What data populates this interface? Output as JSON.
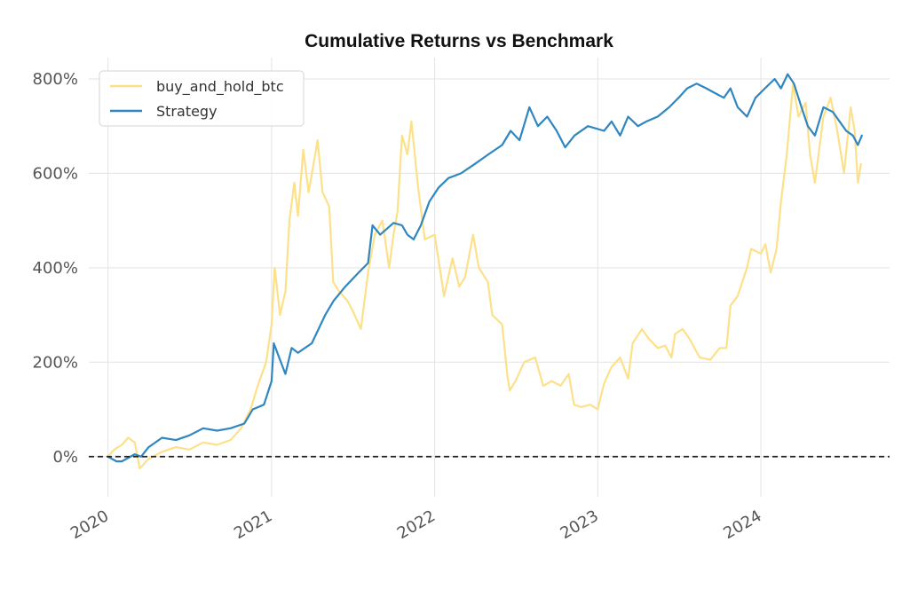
{
  "chart_data": {
    "type": "line",
    "title": "Cumulative Returns vs Benchmark",
    "xlabel": "",
    "ylabel": "",
    "x_tick_labels": [
      "2020",
      "2021",
      "2022",
      "2023",
      "2024"
    ],
    "y_tick_labels": [
      "0%",
      "200%",
      "400%",
      "600%",
      "800%"
    ],
    "y_ticks": [
      0,
      200,
      400,
      600,
      800
    ],
    "ylim": [
      -85,
      845
    ],
    "xlim": [
      "2019-11-19",
      "2024-10-15"
    ],
    "grid": true,
    "legend_position": "top-left",
    "baseline": {
      "y": 0,
      "style": "dashed",
      "color": "#222222"
    },
    "series": [
      {
        "name": "buy_and_hold_btc",
        "color": "#fde08a",
        "points": [
          [
            "2020-01-01",
            0
          ],
          [
            "2020-01-15",
            15
          ],
          [
            "2020-02-01",
            25
          ],
          [
            "2020-02-15",
            40
          ],
          [
            "2020-03-01",
            30
          ],
          [
            "2020-03-12",
            -25
          ],
          [
            "2020-04-01",
            -5
          ],
          [
            "2020-05-01",
            10
          ],
          [
            "2020-06-01",
            20
          ],
          [
            "2020-07-01",
            15
          ],
          [
            "2020-08-01",
            30
          ],
          [
            "2020-09-01",
            25
          ],
          [
            "2020-10-01",
            35
          ],
          [
            "2020-10-25",
            60
          ],
          [
            "2020-11-15",
            100
          ],
          [
            "2020-12-01",
            150
          ],
          [
            "2020-12-20",
            200
          ],
          [
            "2021-01-01",
            280
          ],
          [
            "2021-01-08",
            400
          ],
          [
            "2021-01-20",
            300
          ],
          [
            "2021-02-01",
            350
          ],
          [
            "2021-02-10",
            500
          ],
          [
            "2021-02-21",
            580
          ],
          [
            "2021-03-01",
            510
          ],
          [
            "2021-03-13",
            650
          ],
          [
            "2021-03-25",
            560
          ],
          [
            "2021-04-05",
            620
          ],
          [
            "2021-04-14",
            670
          ],
          [
            "2021-04-25",
            560
          ],
          [
            "2021-05-10",
            530
          ],
          [
            "2021-05-19",
            370
          ],
          [
            "2021-06-01",
            350
          ],
          [
            "2021-06-20",
            330
          ],
          [
            "2021-07-01",
            310
          ],
          [
            "2021-07-20",
            270
          ],
          [
            "2021-08-05",
            390
          ],
          [
            "2021-08-20",
            470
          ],
          [
            "2021-09-06",
            500
          ],
          [
            "2021-09-21",
            400
          ],
          [
            "2021-10-01",
            470
          ],
          [
            "2021-10-10",
            520
          ],
          [
            "2021-10-20",
            680
          ],
          [
            "2021-11-01",
            640
          ],
          [
            "2021-11-10",
            710
          ],
          [
            "2021-11-25",
            570
          ],
          [
            "2021-12-10",
            460
          ],
          [
            "2022-01-01",
            470
          ],
          [
            "2022-01-22",
            340
          ],
          [
            "2022-02-10",
            420
          ],
          [
            "2022-02-25",
            360
          ],
          [
            "2022-03-10",
            380
          ],
          [
            "2022-03-28",
            470
          ],
          [
            "2022-04-10",
            400
          ],
          [
            "2022-04-30",
            370
          ],
          [
            "2022-05-10",
            300
          ],
          [
            "2022-06-01",
            280
          ],
          [
            "2022-06-13",
            170
          ],
          [
            "2022-06-18",
            140
          ],
          [
            "2022-07-01",
            160
          ],
          [
            "2022-07-20",
            200
          ],
          [
            "2022-08-14",
            210
          ],
          [
            "2022-09-01",
            150
          ],
          [
            "2022-09-20",
            160
          ],
          [
            "2022-10-10",
            150
          ],
          [
            "2022-10-28",
            175
          ],
          [
            "2022-11-09",
            110
          ],
          [
            "2022-11-25",
            105
          ],
          [
            "2022-12-15",
            110
          ],
          [
            "2023-01-01",
            100
          ],
          [
            "2023-01-15",
            155
          ],
          [
            "2023-02-01",
            190
          ],
          [
            "2023-02-20",
            210
          ],
          [
            "2023-03-10",
            165
          ],
          [
            "2023-03-20",
            240
          ],
          [
            "2023-04-10",
            270
          ],
          [
            "2023-04-25",
            250
          ],
          [
            "2023-05-15",
            230
          ],
          [
            "2023-06-01",
            235
          ],
          [
            "2023-06-15",
            210
          ],
          [
            "2023-06-23",
            260
          ],
          [
            "2023-07-10",
            270
          ],
          [
            "2023-07-25",
            250
          ],
          [
            "2023-08-17",
            210
          ],
          [
            "2023-09-10",
            205
          ],
          [
            "2023-10-01",
            230
          ],
          [
            "2023-10-16",
            230
          ],
          [
            "2023-10-25",
            320
          ],
          [
            "2023-11-10",
            340
          ],
          [
            "2023-12-01",
            400
          ],
          [
            "2023-12-10",
            440
          ],
          [
            "2024-01-01",
            430
          ],
          [
            "2024-01-11",
            450
          ],
          [
            "2024-01-23",
            390
          ],
          [
            "2024-02-05",
            440
          ],
          [
            "2024-02-15",
            540
          ],
          [
            "2024-02-28",
            640
          ],
          [
            "2024-03-13",
            790
          ],
          [
            "2024-03-25",
            720
          ],
          [
            "2024-04-10",
            750
          ],
          [
            "2024-04-20",
            640
          ],
          [
            "2024-05-01",
            580
          ],
          [
            "2024-05-20",
            720
          ],
          [
            "2024-06-05",
            760
          ],
          [
            "2024-06-20",
            690
          ],
          [
            "2024-07-05",
            600
          ],
          [
            "2024-07-20",
            740
          ],
          [
            "2024-07-29",
            690
          ],
          [
            "2024-08-05",
            580
          ],
          [
            "2024-08-12",
            620
          ]
        ]
      },
      {
        "name": "Strategy",
        "color": "#2f86c0",
        "points": [
          [
            "2020-01-01",
            0
          ],
          [
            "2020-01-20",
            -10
          ],
          [
            "2020-02-01",
            -10
          ],
          [
            "2020-03-01",
            5
          ],
          [
            "2020-03-15",
            0
          ],
          [
            "2020-04-01",
            20
          ],
          [
            "2020-05-01",
            40
          ],
          [
            "2020-06-01",
            35
          ],
          [
            "2020-07-01",
            45
          ],
          [
            "2020-08-01",
            60
          ],
          [
            "2020-09-01",
            55
          ],
          [
            "2020-10-01",
            60
          ],
          [
            "2020-11-01",
            70
          ],
          [
            "2020-11-20",
            100
          ],
          [
            "2020-12-15",
            110
          ],
          [
            "2021-01-01",
            160
          ],
          [
            "2021-01-06",
            240
          ],
          [
            "2021-01-20",
            205
          ],
          [
            "2021-02-01",
            175
          ],
          [
            "2021-02-15",
            230
          ],
          [
            "2021-03-01",
            220
          ],
          [
            "2021-04-01",
            240
          ],
          [
            "2021-05-01",
            300
          ],
          [
            "2021-05-20",
            330
          ],
          [
            "2021-06-15",
            360
          ],
          [
            "2021-07-15",
            390
          ],
          [
            "2021-08-05",
            410
          ],
          [
            "2021-08-15",
            490
          ],
          [
            "2021-09-01",
            470
          ],
          [
            "2021-10-01",
            495
          ],
          [
            "2021-10-20",
            490
          ],
          [
            "2021-11-01",
            470
          ],
          [
            "2021-11-15",
            460
          ],
          [
            "2021-12-01",
            490
          ],
          [
            "2021-12-20",
            540
          ],
          [
            "2022-01-10",
            570
          ],
          [
            "2022-02-01",
            590
          ],
          [
            "2022-03-01",
            600
          ],
          [
            "2022-04-01",
            620
          ],
          [
            "2022-05-01",
            640
          ],
          [
            "2022-06-01",
            660
          ],
          [
            "2022-06-20",
            690
          ],
          [
            "2022-07-10",
            670
          ],
          [
            "2022-08-01",
            740
          ],
          [
            "2022-08-20",
            700
          ],
          [
            "2022-09-10",
            720
          ],
          [
            "2022-10-01",
            690
          ],
          [
            "2022-10-20",
            655
          ],
          [
            "2022-11-10",
            680
          ],
          [
            "2022-12-10",
            700
          ],
          [
            "2023-01-15",
            690
          ],
          [
            "2023-02-01",
            710
          ],
          [
            "2023-02-20",
            680
          ],
          [
            "2023-03-10",
            720
          ],
          [
            "2023-04-01",
            700
          ],
          [
            "2023-04-20",
            710
          ],
          [
            "2023-05-15",
            720
          ],
          [
            "2023-06-10",
            740
          ],
          [
            "2023-07-01",
            760
          ],
          [
            "2023-07-20",
            780
          ],
          [
            "2023-08-10",
            790
          ],
          [
            "2023-09-01",
            780
          ],
          [
            "2023-09-20",
            770
          ],
          [
            "2023-10-10",
            760
          ],
          [
            "2023-10-25",
            780
          ],
          [
            "2023-11-10",
            740
          ],
          [
            "2023-12-01",
            720
          ],
          [
            "2023-12-20",
            760
          ],
          [
            "2024-01-10",
            780
          ],
          [
            "2024-02-01",
            800
          ],
          [
            "2024-02-15",
            780
          ],
          [
            "2024-03-01",
            810
          ],
          [
            "2024-03-15",
            790
          ],
          [
            "2024-04-01",
            740
          ],
          [
            "2024-04-15",
            700
          ],
          [
            "2024-05-01",
            680
          ],
          [
            "2024-05-20",
            740
          ],
          [
            "2024-06-10",
            730
          ],
          [
            "2024-06-25",
            710
          ],
          [
            "2024-07-10",
            690
          ],
          [
            "2024-07-25",
            680
          ],
          [
            "2024-08-05",
            660
          ],
          [
            "2024-08-14",
            680
          ]
        ]
      }
    ]
  }
}
